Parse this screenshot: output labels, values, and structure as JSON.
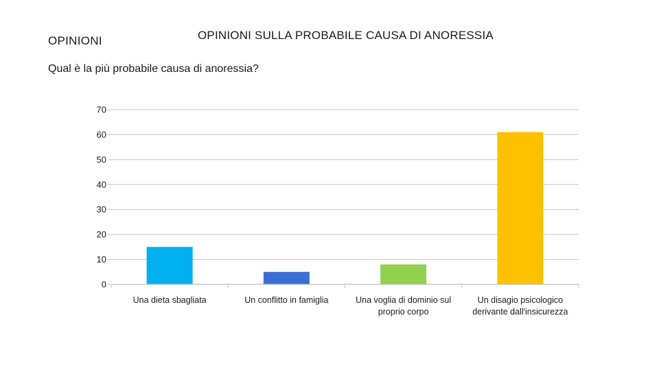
{
  "slide": {
    "section_label": "OPINIONI",
    "title": "OPINIONI SULLA PROBABILE CAUSA DI ANORESSIA",
    "question": "Qual è la più probabile causa di anoressia?"
  },
  "chart_data": {
    "type": "bar",
    "title": "",
    "xlabel": "",
    "ylabel": "",
    "categories": [
      [
        "Una dieta sbagliata"
      ],
      [
        "Un conflitto in famiglia"
      ],
      [
        "Una voglia di dominio sul",
        "proprio corpo"
      ],
      [
        "Un disagio psicologico",
        "derivante dall'insicurezza"
      ]
    ],
    "values": [
      15,
      5,
      8,
      61
    ],
    "colors": [
      "#00b0f0",
      "#3a6fd1",
      "#92d050",
      "#ffc000"
    ],
    "ylim": [
      0,
      70
    ],
    "yticks": [
      0,
      10,
      20,
      30,
      40,
      50,
      60,
      70
    ],
    "grid": true,
    "legend": "none"
  }
}
